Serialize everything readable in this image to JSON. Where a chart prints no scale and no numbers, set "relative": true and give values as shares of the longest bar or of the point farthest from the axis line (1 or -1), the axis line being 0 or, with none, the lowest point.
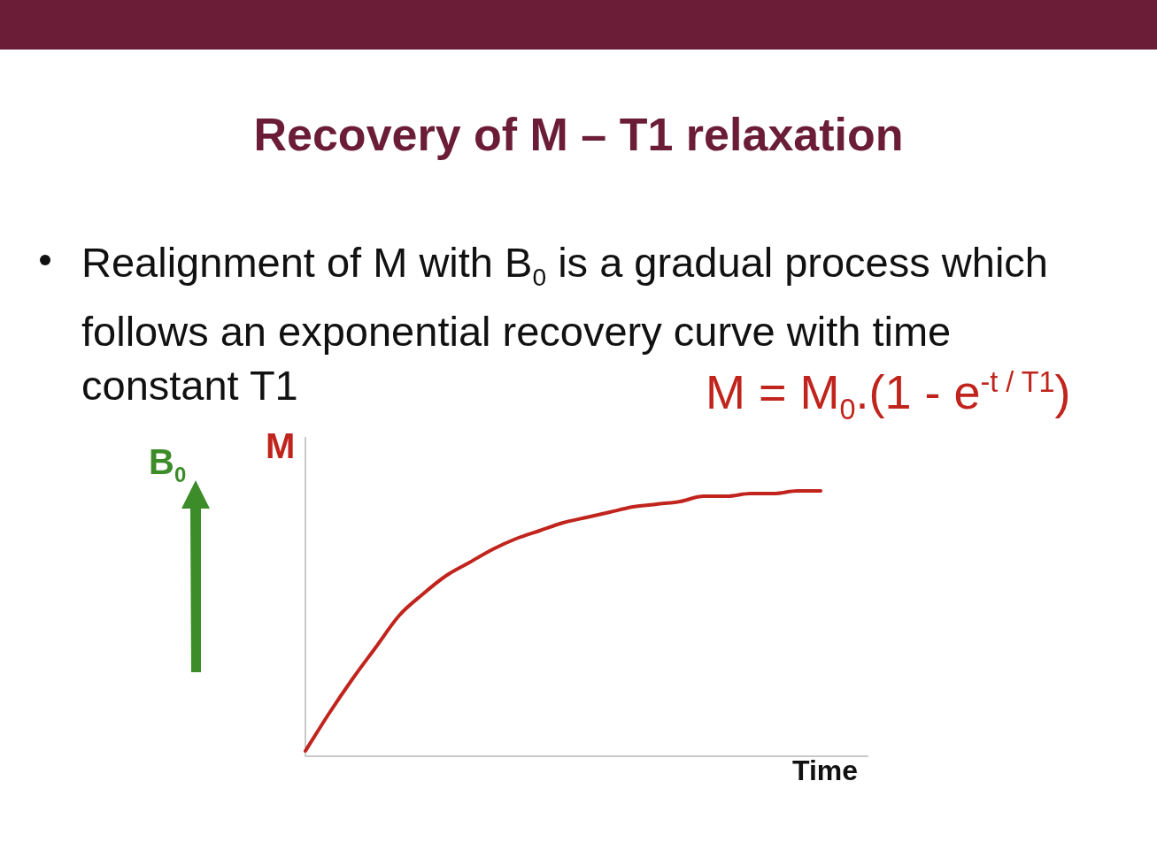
{
  "chart_data": {
    "type": "line",
    "title": "Recovery of M – T1 relaxation",
    "annotations": [
      "Realignment of M with B$_{0}$ is a gradual process which follows an exponential recovery curve with time constant T1",
      "M = M$_{0}$.(1 - e$^{-t / T1}$)",
      "B$_{0}$"
    ],
    "xlabel": "Time",
    "ylabel": "M",
    "relative": true,
    "grid": false,
    "legend": false,
    "marker": "none",
    "line_style": "solid",
    "categories": [
      null,
      null,
      null,
      null,
      null,
      null,
      null,
      null,
      null,
      null,
      null,
      null,
      null,
      null,
      null,
      null,
      null,
      null,
      null,
      null,
      null,
      null,
      null,
      null,
      null
    ],
    "series": [
      {
        "color": "#c0241c",
        "values": [
          0.02,
          0.16,
          0.29,
          0.41,
          0.53,
          0.61,
          0.68,
          0.73,
          0.78,
          0.82,
          0.85,
          0.88,
          0.9,
          0.92,
          0.94,
          0.95,
          0.96,
          0.98,
          0.98,
          0.99,
          0.99,
          1,
          1,
          null,
          null
        ]
      }
    ]
  }
}
